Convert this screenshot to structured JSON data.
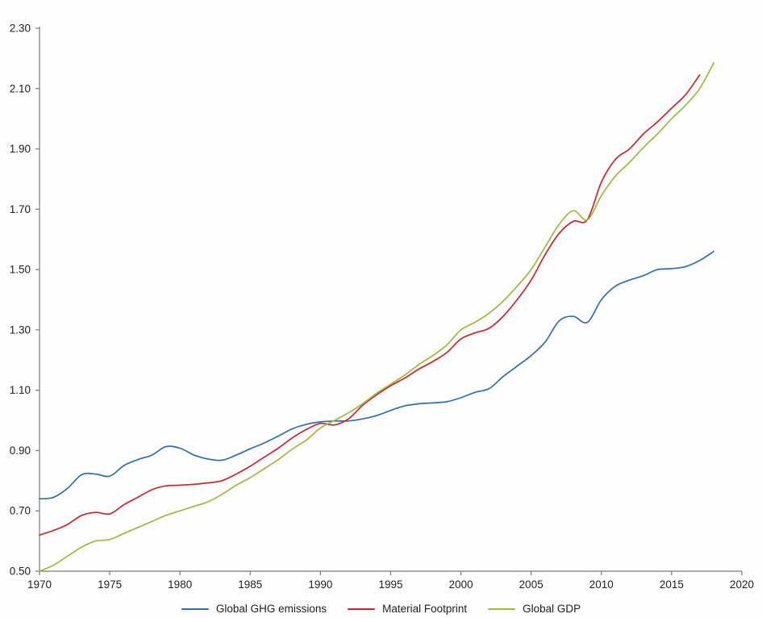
{
  "chart_data": {
    "type": "line",
    "title": "",
    "xlabel": "",
    "ylabel": "",
    "xlim": [
      1970,
      2020
    ],
    "ylim": [
      0.5,
      2.3
    ],
    "x_ticks": [
      1970,
      1975,
      1980,
      1985,
      1990,
      1995,
      2000,
      2005,
      2010,
      2015,
      2020
    ],
    "y_ticks": [
      0.5,
      0.7,
      0.9,
      1.1,
      1.3,
      1.5,
      1.7,
      1.9,
      2.1,
      2.3
    ],
    "y_tick_labels": [
      "0.50",
      "0.70",
      "0.90",
      "1.10",
      "1.30",
      "1.50",
      "1.70",
      "1.90",
      "2.10",
      "2.30"
    ],
    "grid": false,
    "legend_position": "bottom-center",
    "series": [
      {
        "name": "Global GHG emissions",
        "color": "#2e6fac",
        "years": [
          1970,
          1971,
          1972,
          1973,
          1974,
          1975,
          1976,
          1977,
          1978,
          1979,
          1980,
          1981,
          1982,
          1983,
          1984,
          1985,
          1986,
          1987,
          1988,
          1989,
          1990,
          1991,
          1992,
          1993,
          1994,
          1995,
          1996,
          1997,
          1998,
          1999,
          2000,
          2001,
          2002,
          2003,
          2004,
          2005,
          2006,
          2007,
          2008,
          2009,
          2010,
          2011,
          2012,
          2013,
          2014,
          2015,
          2016,
          2017,
          2018
        ],
        "values": [
          0.74,
          0.745,
          0.775,
          0.82,
          0.822,
          0.815,
          0.85,
          0.87,
          0.885,
          0.913,
          0.908,
          0.885,
          0.872,
          0.868,
          0.885,
          0.906,
          0.925,
          0.948,
          0.972,
          0.987,
          0.995,
          0.998,
          0.998,
          1.005,
          1.016,
          1.033,
          1.048,
          1.055,
          1.058,
          1.062,
          1.075,
          1.093,
          1.105,
          1.145,
          1.18,
          1.215,
          1.26,
          1.33,
          1.345,
          1.325,
          1.4,
          1.445,
          1.465,
          1.48,
          1.5,
          1.503,
          1.51,
          1.53,
          1.56
        ]
      },
      {
        "name": "Material Footprint",
        "color": "#c5272d",
        "years": [
          1970,
          1971,
          1972,
          1973,
          1974,
          1975,
          1976,
          1977,
          1978,
          1979,
          1980,
          1981,
          1982,
          1983,
          1984,
          1985,
          1986,
          1987,
          1988,
          1989,
          1990,
          1991,
          1992,
          1993,
          1994,
          1995,
          1996,
          1997,
          1998,
          1999,
          2000,
          2001,
          2002,
          2003,
          2004,
          2005,
          2006,
          2007,
          2008,
          2009,
          2010,
          2011,
          2012,
          2013,
          2014,
          2015,
          2016,
          2017
        ],
        "values": [
          0.62,
          0.635,
          0.655,
          0.685,
          0.695,
          0.69,
          0.72,
          0.745,
          0.77,
          0.783,
          0.785,
          0.788,
          0.793,
          0.8,
          0.822,
          0.848,
          0.878,
          0.908,
          0.942,
          0.97,
          0.99,
          0.985,
          1.005,
          1.05,
          1.085,
          1.115,
          1.14,
          1.17,
          1.195,
          1.225,
          1.27,
          1.29,
          1.305,
          1.345,
          1.4,
          1.465,
          1.55,
          1.62,
          1.66,
          1.665,
          1.79,
          1.865,
          1.9,
          1.95,
          1.99,
          2.035,
          2.08,
          2.145
        ]
      },
      {
        "name": "Global GDP",
        "color": "#9fb83b",
        "years": [
          1970,
          1971,
          1972,
          1973,
          1974,
          1975,
          1976,
          1977,
          1978,
          1979,
          1980,
          1981,
          1982,
          1983,
          1984,
          1985,
          1986,
          1987,
          1988,
          1989,
          1990,
          1991,
          1992,
          1993,
          1994,
          1995,
          1996,
          1997,
          1998,
          1999,
          2000,
          2001,
          2002,
          2003,
          2004,
          2005,
          2006,
          2007,
          2008,
          2009,
          2010,
          2011,
          2012,
          2013,
          2014,
          2015,
          2016,
          2017,
          2018
        ],
        "values": [
          0.5,
          0.52,
          0.55,
          0.58,
          0.6,
          0.605,
          0.625,
          0.645,
          0.665,
          0.685,
          0.7,
          0.715,
          0.73,
          0.755,
          0.785,
          0.81,
          0.84,
          0.87,
          0.905,
          0.935,
          0.975,
          1.0,
          1.025,
          1.055,
          1.09,
          1.12,
          1.15,
          1.185,
          1.215,
          1.25,
          1.3,
          1.325,
          1.355,
          1.395,
          1.445,
          1.5,
          1.575,
          1.65,
          1.695,
          1.665,
          1.745,
          1.81,
          1.855,
          1.905,
          1.95,
          2.0,
          2.045,
          2.1,
          2.185
        ]
      }
    ]
  },
  "legend": {
    "items": [
      {
        "label": "Global GHG emissions"
      },
      {
        "label": "Material Footprint"
      },
      {
        "label": "Global GDP"
      }
    ]
  },
  "colors": {
    "background": "#fdfdfd",
    "axis": "#7a7a7a",
    "tick_text": "#1f1f1f",
    "ghg_blue": "#2e6fac",
    "material_footprint_red": "#c5272d",
    "gdp_green": "#9fb83b"
  }
}
